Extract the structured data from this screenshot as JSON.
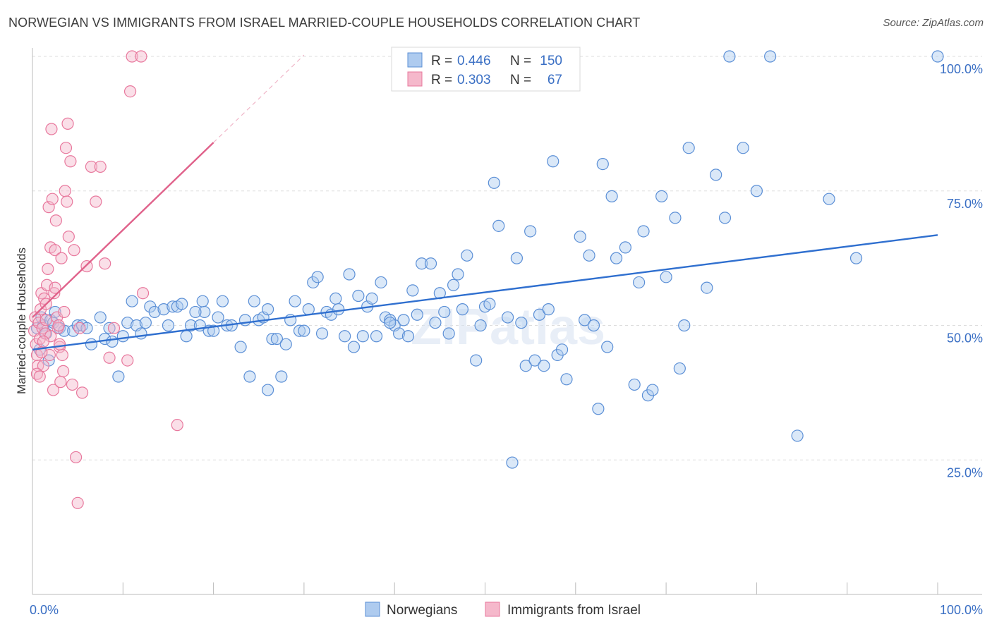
{
  "title": "NORWEGIAN VS IMMIGRANTS FROM ISRAEL MARRIED-COUPLE HOUSEHOLDS CORRELATION CHART",
  "source": "Source: ZipAtlas.com",
  "watermark": "ZIPatlas",
  "colors": {
    "blue": "#5b8fd6",
    "blue_fill": "#aecbef",
    "blue_line": "#2f6fcf",
    "pink": "#e8789d",
    "pink_fill": "#f5b8cb",
    "pink_line": "#e0628b",
    "tick_label": "#3a6fc4",
    "grid": "#dddddd"
  },
  "legend": {
    "r_label": "R =",
    "n_label": "N =",
    "rows": [
      {
        "r": "0.446",
        "n": "150"
      },
      {
        "r": "0.303",
        "n": "67"
      }
    ]
  },
  "chart_data": {
    "type": "scatter",
    "title": "NORWEGIAN VS IMMIGRANTS FROM ISRAEL MARRIED-COUPLE HOUSEHOLDS CORRELATION CHART",
    "xlabel": "",
    "ylabel": "Married-couple Households",
    "xlim": [
      0,
      100
    ],
    "ylim": [
      0,
      100
    ],
    "x_tick_labels": [
      "0.0%",
      "100.0%"
    ],
    "y_ticks": [
      25,
      50,
      75,
      100
    ],
    "y_tick_labels": [
      "25.0%",
      "50.0%",
      "75.0%",
      "100.0%"
    ],
    "grid": true,
    "legend_position": "top-center",
    "series": [
      {
        "name": "Norwegians",
        "color": "#5b8fd6",
        "r": 0.446,
        "n": 150,
        "trend": {
          "x": [
            0,
            100
          ],
          "y": [
            45.5,
            66.8
          ]
        },
        "points": [
          [
            0.5,
            49.5
          ],
          [
            0.8,
            45.5
          ],
          [
            1.0,
            51.5
          ],
          [
            1.2,
            50.0
          ],
          [
            1.5,
            48.5
          ],
          [
            1.8,
            43.5
          ],
          [
            2.0,
            51.0
          ],
          [
            2.3,
            50.5
          ],
          [
            2.5,
            52.5
          ],
          [
            3.0,
            49.5
          ],
          [
            3.5,
            49.0
          ],
          [
            4.5,
            49.0
          ],
          [
            5.0,
            50.0
          ],
          [
            5.5,
            50.0
          ],
          [
            6.0,
            49.5
          ],
          [
            6.5,
            46.5
          ],
          [
            7.5,
            51.5
          ],
          [
            8.0,
            47.5
          ],
          [
            8.5,
            49.5
          ],
          [
            8.8,
            47.0
          ],
          [
            9.5,
            40.5
          ],
          [
            10.0,
            48.0
          ],
          [
            10.5,
            50.5
          ],
          [
            11.0,
            54.5
          ],
          [
            11.5,
            50.0
          ],
          [
            12.0,
            48.5
          ],
          [
            12.5,
            50.5
          ],
          [
            13.0,
            53.5
          ],
          [
            13.5,
            52.5
          ],
          [
            14.5,
            53.0
          ],
          [
            15.0,
            50.0
          ],
          [
            15.5,
            53.5
          ],
          [
            16.0,
            53.5
          ],
          [
            16.5,
            54.0
          ],
          [
            17.0,
            48.0
          ],
          [
            17.5,
            50.0
          ],
          [
            18.5,
            50.0
          ],
          [
            18.8,
            54.5
          ],
          [
            19.0,
            52.5
          ],
          [
            19.5,
            49.0
          ],
          [
            20.0,
            49.0
          ],
          [
            20.5,
            51.5
          ],
          [
            21.0,
            54.5
          ],
          [
            21.5,
            50.0
          ],
          [
            22.0,
            50.0
          ],
          [
            23.0,
            46.0
          ],
          [
            23.5,
            51.0
          ],
          [
            24.0,
            40.5
          ],
          [
            24.5,
            54.5
          ],
          [
            25.0,
            51.0
          ],
          [
            25.5,
            51.5
          ],
          [
            26.0,
            38.0
          ],
          [
            26.5,
            47.5
          ],
          [
            27.0,
            47.5
          ],
          [
            27.5,
            40.5
          ],
          [
            28.0,
            46.5
          ],
          [
            28.5,
            51.0
          ],
          [
            29.0,
            54.5
          ],
          [
            29.5,
            49.0
          ],
          [
            30.0,
            49.0
          ],
          [
            30.5,
            53.0
          ],
          [
            31.0,
            58.0
          ],
          [
            31.5,
            59.0
          ],
          [
            32.0,
            48.5
          ],
          [
            32.5,
            52.5
          ],
          [
            33.0,
            52.0
          ],
          [
            33.5,
            55.0
          ],
          [
            33.8,
            53.0
          ],
          [
            34.5,
            48.0
          ],
          [
            35.0,
            59.5
          ],
          [
            35.5,
            46.0
          ],
          [
            36.0,
            55.5
          ],
          [
            36.5,
            48.0
          ],
          [
            37.0,
            53.5
          ],
          [
            37.5,
            55.0
          ],
          [
            38.0,
            48.0
          ],
          [
            38.5,
            58.0
          ],
          [
            39.0,
            51.5
          ],
          [
            39.5,
            51.0
          ],
          [
            40.0,
            50.0
          ],
          [
            40.5,
            48.5
          ],
          [
            41.0,
            51.0
          ],
          [
            41.5,
            48.0
          ],
          [
            42.0,
            56.5
          ],
          [
            42.5,
            52.0
          ],
          [
            43.0,
            61.5
          ],
          [
            44.0,
            61.5
          ],
          [
            44.5,
            50.5
          ],
          [
            45.0,
            56.0
          ],
          [
            45.5,
            52.5
          ],
          [
            46.0,
            48.5
          ],
          [
            46.5,
            57.5
          ],
          [
            47.0,
            59.5
          ],
          [
            47.5,
            53.0
          ],
          [
            48.0,
            63.0
          ],
          [
            49.0,
            43.5
          ],
          [
            49.5,
            50.0
          ],
          [
            50.0,
            53.5
          ],
          [
            50.5,
            54.0
          ],
          [
            51.0,
            76.5
          ],
          [
            51.5,
            68.5
          ],
          [
            52.5,
            51.5
          ],
          [
            53.0,
            24.5
          ],
          [
            53.5,
            62.5
          ],
          [
            54.0,
            50.5
          ],
          [
            54.5,
            42.5
          ],
          [
            55.0,
            67.5
          ],
          [
            55.5,
            43.5
          ],
          [
            56.0,
            52.0
          ],
          [
            56.5,
            42.5
          ],
          [
            57.0,
            53.0
          ],
          [
            57.5,
            80.5
          ],
          [
            58.0,
            44.5
          ],
          [
            58.5,
            45.5
          ],
          [
            59.0,
            40.0
          ],
          [
            60.5,
            66.5
          ],
          [
            61.0,
            51.0
          ],
          [
            61.5,
            63.0
          ],
          [
            62.0,
            50.0
          ],
          [
            62.5,
            34.5
          ],
          [
            63.0,
            80.0
          ],
          [
            63.5,
            46.0
          ],
          [
            64.0,
            74.0
          ],
          [
            64.5,
            62.5
          ],
          [
            65.5,
            64.5
          ],
          [
            66.5,
            39.0
          ],
          [
            67.0,
            58.0
          ],
          [
            67.5,
            67.5
          ],
          [
            68.0,
            37.0
          ],
          [
            68.5,
            38.0
          ],
          [
            69.5,
            74.0
          ],
          [
            70.0,
            59.0
          ],
          [
            71.0,
            70.0
          ],
          [
            71.5,
            42.0
          ],
          [
            72.0,
            50.0
          ],
          [
            72.5,
            83.0
          ],
          [
            74.5,
            57.0
          ],
          [
            75.5,
            78.0
          ],
          [
            76.5,
            70.0
          ],
          [
            77.0,
            100.0
          ],
          [
            78.5,
            83.0
          ],
          [
            80.0,
            75.0
          ],
          [
            81.5,
            100.0
          ],
          [
            84.5,
            29.5
          ],
          [
            88.0,
            73.5
          ],
          [
            91.0,
            62.5
          ],
          [
            100.0,
            100.0
          ],
          [
            18.0,
            52.5
          ],
          [
            26.0,
            53.0
          ],
          [
            39.5,
            50.5
          ]
        ]
      },
      {
        "name": "Immigrants from Israel",
        "color": "#e8789d",
        "r": 0.303,
        "n": 67,
        "trend": {
          "x": [
            0,
            20
          ],
          "y": [
            51.5,
            84.0
          ]
        },
        "points": [
          [
            0.2,
            49.0
          ],
          [
            0.3,
            51.5
          ],
          [
            0.4,
            46.5
          ],
          [
            0.5,
            44.5
          ],
          [
            0.6,
            42.5
          ],
          [
            0.7,
            50.5
          ],
          [
            0.8,
            47.5
          ],
          [
            0.9,
            53.0
          ],
          [
            1.0,
            56.0
          ],
          [
            1.1,
            49.5
          ],
          [
            1.2,
            42.5
          ],
          [
            1.3,
            55.0
          ],
          [
            1.4,
            48.5
          ],
          [
            1.5,
            51.0
          ],
          [
            1.6,
            57.5
          ],
          [
            1.7,
            60.5
          ],
          [
            1.8,
            72.0
          ],
          [
            1.9,
            44.5
          ],
          [
            2.0,
            64.5
          ],
          [
            2.1,
            86.5
          ],
          [
            2.2,
            73.5
          ],
          [
            2.3,
            38.0
          ],
          [
            2.4,
            56.0
          ],
          [
            2.5,
            64.0
          ],
          [
            2.6,
            69.5
          ],
          [
            2.7,
            51.5
          ],
          [
            2.8,
            49.5
          ],
          [
            2.9,
            50.0
          ],
          [
            3.0,
            46.0
          ],
          [
            3.1,
            39.5
          ],
          [
            3.2,
            62.5
          ],
          [
            3.3,
            44.5
          ],
          [
            3.4,
            41.5
          ],
          [
            3.5,
            52.5
          ],
          [
            3.6,
            75.0
          ],
          [
            3.7,
            83.0
          ],
          [
            3.8,
            73.0
          ],
          [
            3.9,
            87.5
          ],
          [
            4.0,
            66.5
          ],
          [
            4.2,
            80.5
          ],
          [
            4.4,
            39.0
          ],
          [
            4.6,
            64.0
          ],
          [
            4.8,
            25.5
          ],
          [
            5.0,
            17.0
          ],
          [
            5.2,
            49.5
          ],
          [
            5.5,
            37.5
          ],
          [
            6.0,
            61.0
          ],
          [
            6.5,
            79.5
          ],
          [
            7.0,
            73.0
          ],
          [
            7.5,
            79.5
          ],
          [
            8.0,
            61.5
          ],
          [
            8.5,
            44.0
          ],
          [
            9.0,
            49.5
          ],
          [
            10.5,
            43.5
          ],
          [
            10.8,
            93.5
          ],
          [
            11.0,
            100.0
          ],
          [
            12.0,
            100.0
          ],
          [
            12.2,
            56.0
          ],
          [
            16.0,
            31.5
          ],
          [
            0.5,
            41.0
          ],
          [
            1.0,
            45.0
          ],
          [
            1.5,
            54.0
          ],
          [
            2.0,
            48.0
          ],
          [
            2.5,
            57.0
          ],
          [
            3.0,
            46.5
          ],
          [
            0.8,
            40.5
          ],
          [
            1.2,
            47.0
          ]
        ]
      }
    ]
  },
  "bottom_legend": [
    "Norwegians",
    "Immigrants from Israel"
  ]
}
